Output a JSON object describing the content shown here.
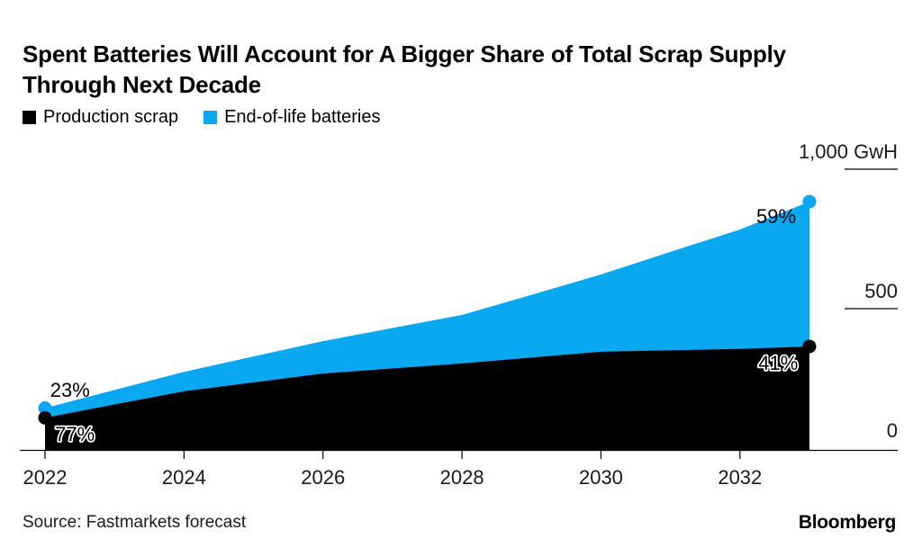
{
  "chart": {
    "title": "Spent Batteries Will Account for A Bigger Share of Total Scrap Supply Through Next Decade",
    "source": "Source: Fastmarkets forecast",
    "logo": "Bloomberg"
  },
  "chart_data": {
    "type": "area",
    "stacked": true,
    "title": "Spent Batteries Will Account for A Bigger Share of Total Scrap Supply Through Next Decade",
    "unit": "GwH",
    "x": [
      2022,
      2023,
      2024,
      2025,
      2026,
      2027,
      2028,
      2029,
      2030,
      2031,
      2032,
      2033
    ],
    "series": [
      {
        "name": "Production scrap",
        "color": "#000000",
        "values": [
          115,
          163,
          210,
          242,
          274,
          292,
          310,
          331,
          352,
          357,
          362,
          371
        ]
      },
      {
        "name": "End-of-life batteries",
        "color": "#0AA8F0",
        "values": [
          35,
          52,
          70,
          93,
          116,
          145,
          174,
          225,
          277,
          353,
          428,
          519
        ]
      }
    ],
    "x_ticks": [
      2022,
      2024,
      2026,
      2028,
      2030,
      2032
    ],
    "y_ticks": [
      {
        "value": 1000,
        "label": "1,000 GwH"
      },
      {
        "value": 500,
        "label": "500"
      },
      {
        "value": 0,
        "label": "0"
      }
    ],
    "ylim": [
      0,
      1000
    ],
    "grid": false,
    "legend_position": "top-left",
    "annotations": [
      {
        "text": "23%",
        "year": 2022.36,
        "gwh": 190,
        "outlined": false
      },
      {
        "text": "77%",
        "year": 2022.43,
        "gwh": 32,
        "outlined": true
      },
      {
        "text": "59%",
        "year": 2032.52,
        "gwh": 813,
        "outlined": false
      },
      {
        "text": "41%",
        "year": 2032.55,
        "gwh": 287,
        "outlined": true
      }
    ]
  }
}
